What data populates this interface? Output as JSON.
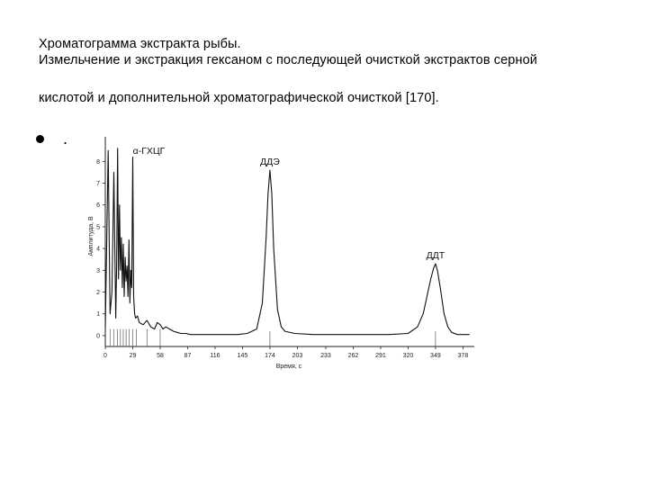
{
  "caption": {
    "line1": "Хроматограмма экстракта рыбы.",
    "line2": "Измельчение и экстракция гексаном с последующей очисткой экстрактов серной",
    "line3": "кислотой и дополнительной хроматографической очисткой [170]."
  },
  "bullet": {
    "text": "."
  },
  "chart_data": {
    "type": "line",
    "xlabel": "Время, с",
    "ylabel": "Амплитуда, В",
    "x_ticks": [
      "0",
      "29",
      "58",
      "87",
      "116",
      "145",
      "174",
      "203",
      "233",
      "262",
      "291",
      "320",
      "349",
      "378"
    ],
    "y_ticks": [
      "0",
      "1",
      "2",
      "3",
      "4",
      "5",
      "6",
      "7",
      "8"
    ],
    "xlim": [
      0,
      390
    ],
    "ylim": [
      -0.5,
      8.8
    ],
    "peak_labels": [
      {
        "text": "α-ГХЦГ",
        "x": 29,
        "y": 8.1
      },
      {
        "text": "ДДЭ",
        "x": 174,
        "y": 7.6
      },
      {
        "text": "ДДТ",
        "x": 349,
        "y": 3.3
      }
    ],
    "series": [
      {
        "x": [
          0,
          3,
          5,
          7,
          9,
          11,
          12,
          13,
          14,
          15,
          16,
          17,
          18,
          19,
          20,
          21,
          22,
          23,
          24,
          25,
          26,
          27,
          28,
          29,
          30,
          31,
          32,
          34,
          36,
          40,
          44,
          48,
          52,
          55,
          58,
          61,
          64,
          68,
          72,
          76,
          80,
          85,
          90,
          100,
          110,
          120,
          130,
          140,
          150,
          160,
          166,
          170,
          172,
          174,
          176,
          178,
          182,
          186,
          190,
          200,
          220,
          240,
          260,
          280,
          300,
          320,
          330,
          336,
          340,
          344,
          347,
          349,
          351,
          354,
          358,
          362,
          366,
          372,
          378,
          385
        ],
        "y": [
          0.3,
          8.5,
          1.0,
          2.0,
          7.5,
          0.8,
          3.2,
          8.6,
          2.6,
          6.0,
          3.0,
          4.5,
          2.2,
          4.2,
          1.8,
          3.6,
          2.5,
          3.2,
          1.8,
          4.4,
          1.5,
          3.0,
          2.2,
          8.2,
          1.8,
          1.0,
          0.8,
          0.9,
          0.6,
          0.5,
          0.7,
          0.4,
          0.3,
          0.6,
          0.5,
          0.3,
          0.4,
          0.3,
          0.2,
          0.15,
          0.1,
          0.1,
          0.05,
          0.05,
          0.05,
          0.05,
          0.05,
          0.05,
          0.1,
          0.3,
          1.5,
          4.5,
          6.5,
          7.6,
          6.5,
          4.0,
          1.2,
          0.4,
          0.2,
          0.1,
          0.05,
          0.05,
          0.05,
          0.05,
          0.05,
          0.1,
          0.4,
          1.0,
          1.8,
          2.6,
          3.1,
          3.3,
          3.0,
          2.2,
          1.0,
          0.4,
          0.15,
          0.05,
          0.05,
          0.05
        ]
      }
    ],
    "grid": false
  }
}
